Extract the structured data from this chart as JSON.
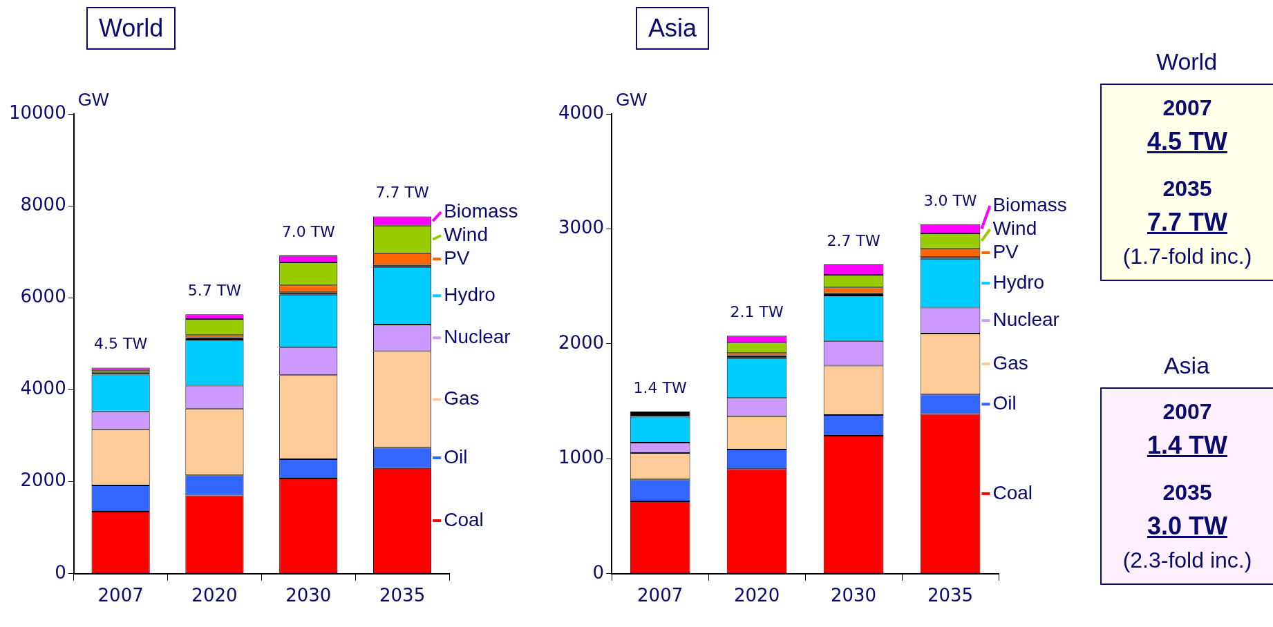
{
  "chart_data": [
    {
      "type": "bar",
      "title": "World",
      "ylabel": "GW",
      "stacked": true,
      "legend": "right",
      "categories": [
        "2007",
        "2020",
        "2030",
        "2035"
      ],
      "ylim": [
        0,
        10000
      ],
      "yticks": [
        0,
        2000,
        4000,
        6000,
        8000,
        10000
      ],
      "grid": false,
      "annotations": [
        {
          "text": "4.5 TW",
          "x": "2007",
          "y": 4480
        },
        {
          "text": "5.7 TW",
          "x": "2020",
          "y": 5640
        },
        {
          "text": "7.0 TW",
          "x": "2030",
          "y": 6920
        },
        {
          "text": "7.7 TW",
          "x": "2035",
          "y": 7770
        }
      ],
      "series": [
        {
          "name": "Coal",
          "color": "#ff0000",
          "values": [
            1350,
            1700,
            2070,
            2300
          ]
        },
        {
          "name": "Oil",
          "color": "#3366ff",
          "values": [
            570,
            440,
            420,
            440
          ]
        },
        {
          "name": "Gas",
          "color": "#ffcc99",
          "values": [
            1220,
            1450,
            1830,
            2100
          ]
        },
        {
          "name": "Nuclear",
          "color": "#cc99ff",
          "values": [
            390,
            500,
            600,
            580
          ]
        },
        {
          "name": "Hydro",
          "color": "#00ccff",
          "values": [
            800,
            1000,
            1150,
            1250
          ]
        },
        {
          "color": "#000000",
          "values": [
            50,
            50,
            50,
            50
          ]
        },
        {
          "name": "PV",
          "color": "#ff6600",
          "values": [
            0,
            50,
            150,
            250
          ]
        },
        {
          "name": "Wind",
          "color": "#99cc00",
          "values": [
            50,
            350,
            500,
            600
          ]
        },
        {
          "name": "Biomass",
          "color": "#ff00ff",
          "values": [
            50,
            100,
            150,
            200
          ]
        }
      ]
    },
    {
      "type": "bar",
      "title": "Asia",
      "ylabel": "GW",
      "stacked": true,
      "legend": "right",
      "categories": [
        "2007",
        "2020",
        "2030",
        "2035"
      ],
      "ylim": [
        0,
        4000
      ],
      "yticks": [
        0,
        1000,
        2000,
        3000,
        4000
      ],
      "grid": false,
      "annotations": [
        {
          "text": "1.4 TW",
          "x": "2007",
          "y": 1410
        },
        {
          "text": "2.1 TW",
          "x": "2020",
          "y": 2070
        },
        {
          "text": "2.7 TW",
          "x": "2030",
          "y": 2690
        },
        {
          "text": "3.0 TW",
          "x": "2035",
          "y": 3040
        }
      ],
      "series": [
        {
          "name": "Coal",
          "color": "#ff0000",
          "values": [
            630,
            910,
            1200,
            1390
          ]
        },
        {
          "name": "Oil",
          "color": "#3366ff",
          "values": [
            190,
            170,
            180,
            170
          ]
        },
        {
          "name": "Gas",
          "color": "#ffcc99",
          "values": [
            230,
            290,
            430,
            530
          ]
        },
        {
          "name": "Nuclear",
          "color": "#cc99ff",
          "values": [
            90,
            160,
            215,
            225
          ]
        },
        {
          "name": "Hydro",
          "color": "#00ccff",
          "values": [
            225,
            345,
            395,
            425
          ]
        },
        {
          "color": "#000000",
          "values": [
            45,
            25,
            20,
            15
          ]
        },
        {
          "name": "PV",
          "color": "#ff6600",
          "values": [
            0,
            20,
            50,
            75
          ]
        },
        {
          "name": "Wind",
          "color": "#99cc00",
          "values": [
            0,
            90,
            110,
            130
          ]
        },
        {
          "name": "Biomass",
          "color": "#ff00ff",
          "values": [
            0,
            60,
            90,
            80
          ]
        }
      ]
    },
    {
      "type": "other",
      "title": "World",
      "color": "#ffffea",
      "annotations": [
        "2007",
        "4.5 TW",
        "2035",
        "7.7 TW",
        "(1.7-fold inc.)"
      ]
    },
    {
      "type": "other",
      "title": "Asia",
      "color": "#fff0ff",
      "annotations": [
        "2007",
        "1.4 TW",
        "2035",
        "3.0 TW",
        "(2.3-fold inc.)"
      ]
    }
  ]
}
